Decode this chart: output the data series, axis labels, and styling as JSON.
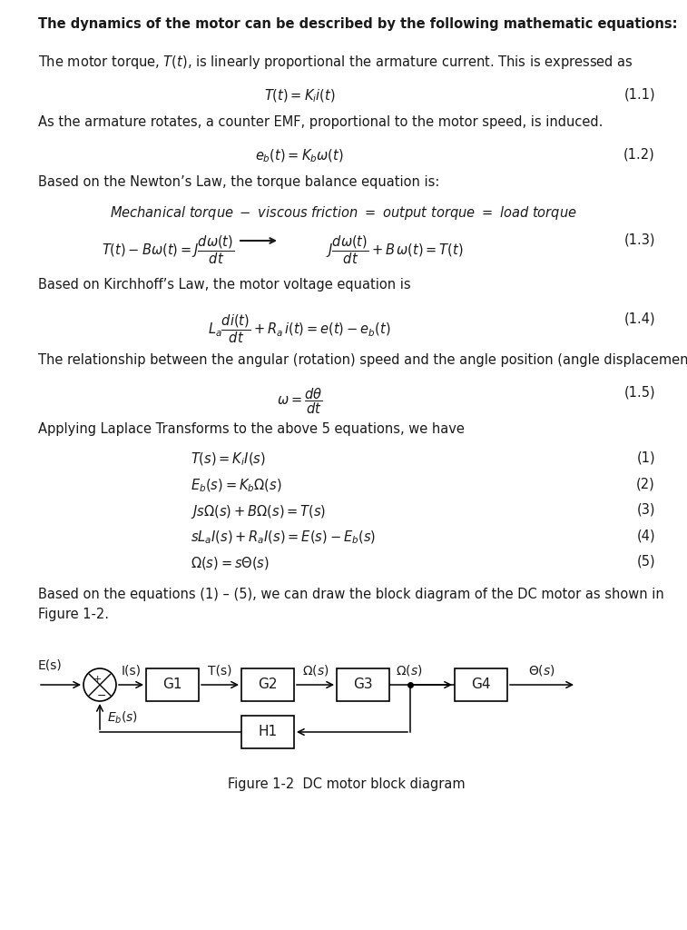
{
  "bg_color": "#ffffff",
  "title_bold": "The dynamics of the motor can be described by the following mathematic equations:",
  "para1": "The motor torque, $T(t)$, is linearly proportional the armature current. This is expressed as",
  "eq11": "$T(t) = K_i i(t)$",
  "eq11_num": "(1.1)",
  "para2": "As the armature rotates, a counter EMF, proportional to the motor speed, is induced.",
  "eq12": "$e_b(t) = K_b\\omega(t)$",
  "eq12_num": "(1.2)",
  "para3": "Based on the Newton’s Law, the torque balance equation is:",
  "eq_mech": "\\textit{Mechanical torque - viscous friction} $=$ \\textit{output torque} $=$ \\textit{load torque}",
  "eq13a": "$T(t) - B\\omega(t) = J\\dfrac{d\\omega(t)}{dt}$",
  "eq13_arrow": "$\\rightarrow$",
  "eq13b": "$J\\dfrac{d\\omega(t)}{dt} + B\\,\\omega(t) = T(t)$",
  "eq13_num": "(1.3)",
  "para4": "Based on Kirchhoff’s Law, the motor voltage equation is",
  "eq14": "$L_a\\dfrac{di(t)}{dt} + R_a\\,i(t) = e(t) - e_b(t)$",
  "eq14_num": "(1.4)",
  "para5": "The relationship between the angular (rotation) speed and the angle position (angle displacement) is",
  "eq15": "$\\omega = \\dfrac{d\\theta}{dt}$",
  "eq15_num": "(1.5)",
  "para6": "Applying Laplace Transforms to the above 5 equations, we have",
  "leq1": "$T(s) = K_i I(s)$",
  "leq1_num": "(1)",
  "leq2": "$E_b(s) = K_b\\Omega(s)$",
  "leq2_num": "(2)",
  "leq3": "$Js\\Omega(s) + B\\Omega(s) = T(s)$",
  "leq3_num": "(3)",
  "leq4": "$sL_a I(s) + R_a I(s) = E(s) - E_b(s)$",
  "leq4_num": "(4)",
  "leq5": "$\\Omega(s) = s\\Theta(s)$",
  "leq5_num": "(5)",
  "para7": "Based on the equations (1) – (5), we can draw the block diagram of the DC motor as shown in\nFigure 1-2.",
  "fig_caption": "Figure 1-2  DC motor block diagram",
  "text_color": "#1a1a1a",
  "fontsize_body": 10.5,
  "fontsize_eq": 11
}
